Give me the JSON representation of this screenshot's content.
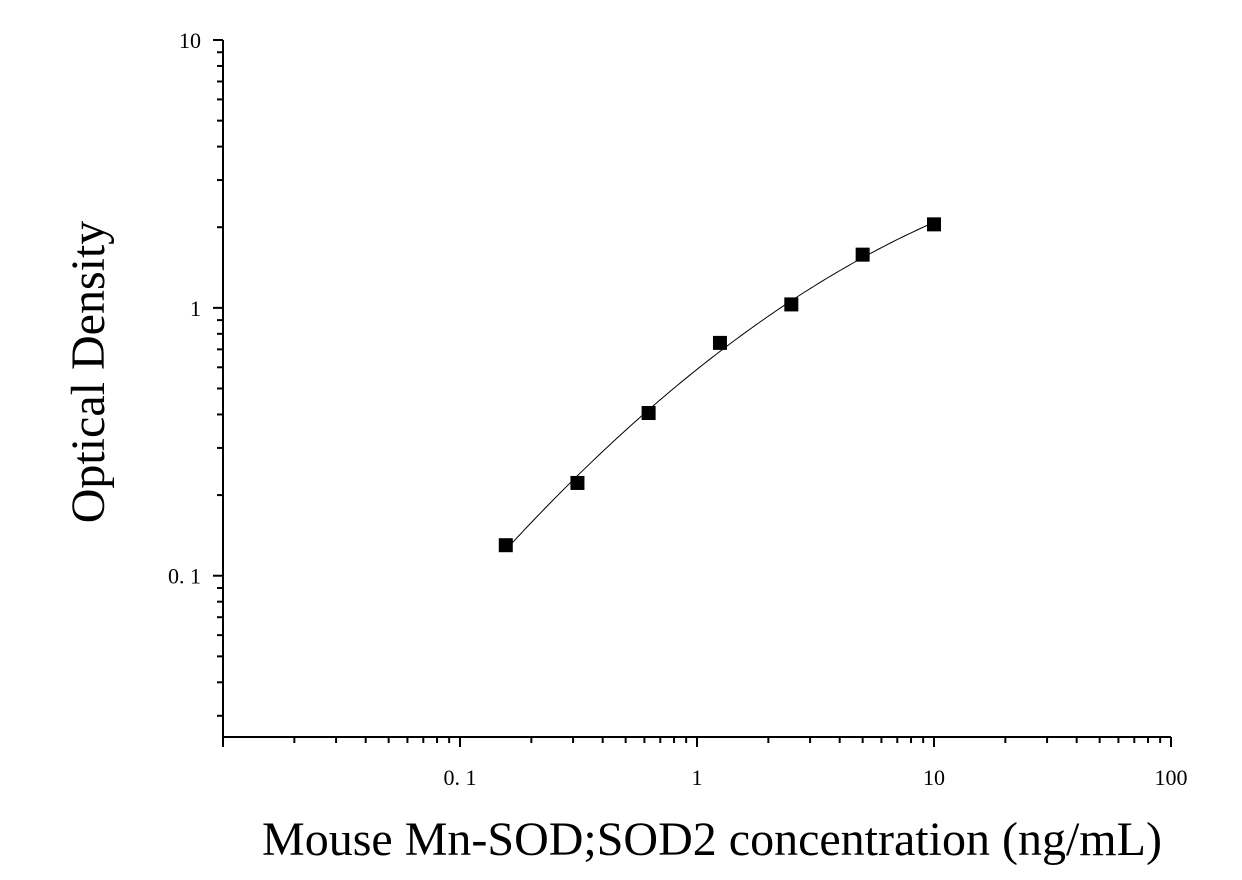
{
  "chart_data": {
    "type": "scatter",
    "title": "",
    "xlabel": "Mouse Mn-SOD;SOD2 concentration (ng/mL)",
    "ylabel": "Optical Density",
    "x_scale": "log",
    "y_scale": "log",
    "xlim": [
      0.01,
      100
    ],
    "ylim": [
      0.025,
      10
    ],
    "x_ticks": [
      {
        "value": 0.1,
        "label": "0. 1"
      },
      {
        "value": 1,
        "label": "1"
      },
      {
        "value": 10,
        "label": "10"
      },
      {
        "value": 100,
        "label": "100"
      }
    ],
    "y_ticks": [
      {
        "value": 0.1,
        "label": "0. 1"
      },
      {
        "value": 1,
        "label": "1"
      },
      {
        "value": 10,
        "label": "10"
      }
    ],
    "grid": false,
    "marker": "square",
    "color": "#000000",
    "series": [
      {
        "x": [
          0.156,
          0.313,
          0.625,
          1.25,
          2.5,
          5,
          10
        ],
        "y": [
          0.13,
          0.222,
          0.405,
          0.74,
          1.03,
          1.58,
          2.05
        ]
      }
    ],
    "fit_curve": true
  }
}
